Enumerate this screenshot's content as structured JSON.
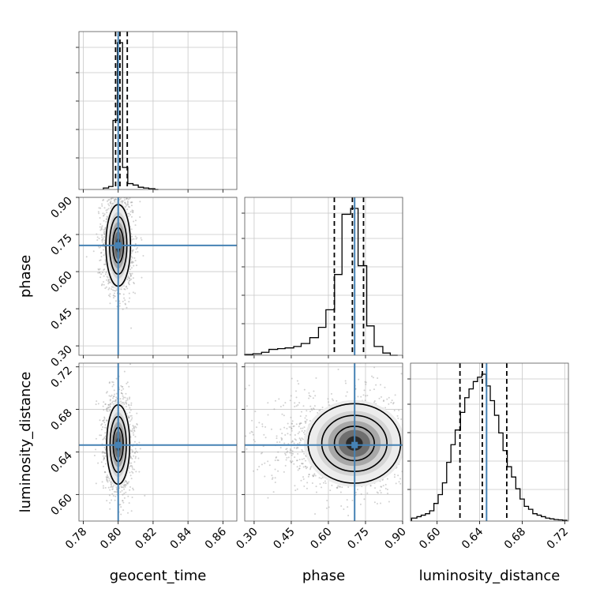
{
  "chart_data": {
    "type": "corner",
    "parameters": [
      "geocent_time",
      "phase",
      "luminosity_distance"
    ],
    "truths": {
      "geocent_time": 0.8,
      "phase": 0.706,
      "luminosity_distance": 0.6465
    },
    "axes": {
      "geocent_time": {
        "lim": [
          0.7775,
          0.868
        ],
        "ticks": [
          "0.78",
          "0.80",
          "0.82",
          "0.84",
          "0.86"
        ],
        "tick_values": [
          0.78,
          0.8,
          0.82,
          0.84,
          0.86
        ]
      },
      "phase": {
        "lim": [
          0.262,
          0.9
        ],
        "ticks": [
          "0.30",
          "0.45",
          "0.60",
          "0.75",
          "0.90"
        ],
        "tick_values": [
          0.3,
          0.45,
          0.6,
          0.75,
          0.9
        ]
      },
      "luminosity_distance": {
        "lim": [
          0.575,
          0.7235
        ],
        "ticks": [
          "0.60",
          "0.64",
          "0.68",
          "0.72"
        ],
        "tick_values": [
          0.6,
          0.64,
          0.68,
          0.72
        ]
      }
    },
    "quantiles": {
      "geocent_time": [
        0.7985,
        0.801,
        0.8052
      ],
      "phase": [
        0.624,
        0.697,
        0.742
      ],
      "luminosity_distance": [
        0.6215,
        0.6425,
        0.6655
      ]
    },
    "histograms": {
      "geocent_time": {
        "edges": [
          0.7915,
          0.7945,
          0.797,
          0.7995,
          0.8025,
          0.8055,
          0.8085,
          0.8115,
          0.8145,
          0.8175,
          0.821,
          0.823
        ],
        "heights": [
          0.01,
          0.02,
          0.47,
          1.0,
          0.15,
          0.04,
          0.03,
          0.015,
          0.01,
          0.005,
          0.0
        ]
      },
      "phase": {
        "edges": [
          0.262,
          0.295,
          0.33,
          0.36,
          0.395,
          0.425,
          0.46,
          0.49,
          0.525,
          0.56,
          0.59,
          0.625,
          0.655,
          0.69,
          0.72,
          0.755,
          0.785,
          0.82,
          0.85,
          0.88
        ],
        "heights": [
          0.005,
          0.01,
          0.02,
          0.04,
          0.045,
          0.05,
          0.06,
          0.08,
          0.12,
          0.19,
          0.31,
          0.55,
          0.96,
          1.0,
          0.61,
          0.2,
          0.06,
          0.015,
          0.0
        ]
      },
      "luminosity_distance": {
        "edges": [
          0.576,
          0.581,
          0.585,
          0.589,
          0.593,
          0.597,
          0.601,
          0.605,
          0.609,
          0.613,
          0.617,
          0.622,
          0.626,
          0.63,
          0.634,
          0.638,
          0.642,
          0.646,
          0.65,
          0.654,
          0.658,
          0.662,
          0.666,
          0.67,
          0.674,
          0.678,
          0.682,
          0.686,
          0.69,
          0.694,
          0.698,
          0.702,
          0.706,
          0.71,
          0.714,
          0.718,
          0.722
        ],
        "heights": [
          0.02,
          0.03,
          0.04,
          0.05,
          0.07,
          0.12,
          0.18,
          0.26,
          0.4,
          0.52,
          0.62,
          0.74,
          0.84,
          0.9,
          0.95,
          0.98,
          1.0,
          0.92,
          0.82,
          0.72,
          0.6,
          0.48,
          0.37,
          0.3,
          0.22,
          0.15,
          0.1,
          0.08,
          0.05,
          0.04,
          0.03,
          0.02,
          0.015,
          0.01,
          0.008,
          0.005
        ]
      }
    },
    "posterior_2d": {
      "phase_vs_geocent_time": {
        "center": [
          0.8,
          0.706
        ],
        "sd": [
          0.0032,
          0.075
        ]
      },
      "luminosity_distance_vs_geocent_time": {
        "center": [
          0.8,
          0.647
        ],
        "sd": [
          0.003,
          0.017
        ]
      },
      "luminosity_distance_vs_phase": {
        "center": [
          0.705,
          0.648
        ],
        "sd": [
          0.085,
          0.017
        ]
      }
    },
    "colors": {
      "truth": "#4682b4",
      "hist": "#000000",
      "samples": "#9a9a9a",
      "grid": "#c8c8c8"
    },
    "grid": true
  }
}
